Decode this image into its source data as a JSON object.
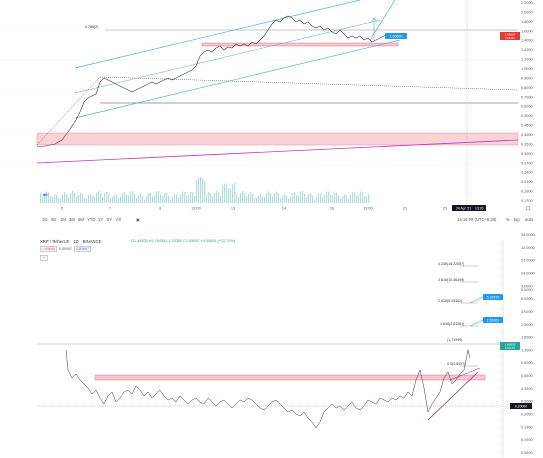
{
  "top_chart": {
    "y_axis_labels": [
      "2.2000",
      "2.0000",
      "1.8000",
      "1.6000",
      "1.4000",
      "1.2000",
      "1.1000",
      "1.0000",
      "0.9000",
      "0.8000",
      "0.7000",
      "0.6000",
      "0.5000",
      "0.4500",
      "0.4000",
      "0.3500",
      "0.3000",
      "0.2700",
      "0.2400",
      "0.2100",
      "0.1900",
      "0.1700"
    ],
    "x_axis_labels": [
      "5",
      "7",
      "9",
      "12:00",
      "13",
      "14",
      "16",
      "19:00",
      "21",
      "23",
      "25"
    ],
    "fib_label": "0.786(2)",
    "callout_price": "1.90690",
    "price_tag": "1.66907",
    "price_tag_sub": "1.64392",
    "crosshair_date": "24 Apr '21",
    "crosshair_time": "13:30"
  },
  "toolbar": {
    "timeframes": [
      "1D",
      "5D",
      "1M",
      "3M",
      "6M",
      "YTD",
      "1Y",
      "5Y",
      "All"
    ],
    "calendar_icon": "calendar-icon",
    "time_readout": "14:15:09 (UTC+6:30)",
    "percent_label": "%",
    "log_label": "log",
    "auto_label": "auto"
  },
  "bottom_chart": {
    "pair": "XRP / TetherUS",
    "interval": "1D",
    "exchange": "BINANCE",
    "ohlc": "O1.34825  H1.76455  L1.33350  C1.65697  +0.30654 (+22.76%)",
    "sell_price": "1.65695",
    "spread": "0.00007",
    "buy_price": "1.65697",
    "collapse_glyph": "^",
    "y_axis_labels": [
      "48.0000",
      "32.0000",
      "22.0000",
      "14.0000",
      "9.0000",
      "6.0000",
      "4.0000",
      "2.5000",
      "1.6000",
      "1.2000",
      "0.9000",
      "0.6500",
      "0.4500",
      "0.3000",
      "0.2000",
      "0.1300",
      "0.0900",
      "0.0600"
    ],
    "y_axis_extra": "5.0000",
    "fib_levels": [
      {
        "label": "4.236(16.22097)"
      },
      {
        "label": "3.618(10.46499)"
      },
      {
        "label": "2.618(5.25362)"
      },
      {
        "label": "1.618(2.63261)"
      },
      {
        "label": "(1.71999)"
      },
      {
        "label": "0.5(0.8927)"
      }
    ],
    "target_upper": "5.22679",
    "target_lower": "2.63261",
    "price_tag": "1.65695",
    "price_tag_sub": "14:52:51",
    "crosshair_price": "0.20000"
  }
}
